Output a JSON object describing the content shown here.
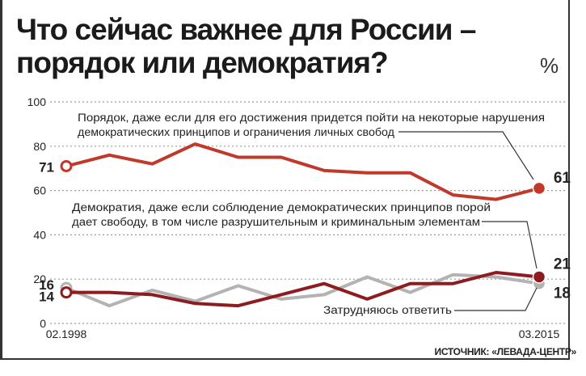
{
  "title_lines": [
    "Что сейчас важнее для России –",
    "порядок или демократия?"
  ],
  "unit": "%",
  "source": "ИСТОЧНИК: «ЛЕВАДА-ЦЕНТР»",
  "colors": {
    "order": "#c0392b",
    "democracy": "#8e1b1f",
    "undecided": "#b3b3b3",
    "grid": "#9a9a9a"
  },
  "chart_data": {
    "type": "line",
    "ylim": [
      0,
      100
    ],
    "yticks": [
      "0",
      "20",
      "40",
      "60",
      "80",
      "100"
    ],
    "x_labels": [
      "02.1998",
      "03.2015"
    ],
    "grid": true,
    "series": [
      {
        "key": "order",
        "name": "Порядок, даже если для его достижения придется пойти на некоторые нарушения демократических принципов и ограничения личных свобод",
        "name_lines": [
          "Порядок, даже если для его достижения придется пойти на некоторые нарушения",
          "демократических принципов и ограничения личных свобод"
        ],
        "values": [
          71,
          76,
          72,
          81,
          75,
          75,
          69,
          68,
          68,
          58,
          56,
          61
        ],
        "start_label": "71",
        "end_label": "61"
      },
      {
        "key": "democracy",
        "name": "Демократия, даже если соблюдение демократических принципов порой дает свободу, в том числе разрушительным и криминальным элементам",
        "name_lines": [
          "Демократия, даже если соблюдение демократических принципов порой",
          "дает свободу, в том числе разрушительным и криминальным элементам"
        ],
        "values": [
          14,
          14,
          13,
          9,
          8,
          13,
          18,
          11,
          18,
          18,
          23,
          21
        ],
        "start_label": "14",
        "end_label": "21"
      },
      {
        "key": "undecided",
        "name": "Затрудняюсь ответить",
        "name_lines": [
          "Затрудняюсь ответить"
        ],
        "values": [
          16,
          8,
          15,
          10,
          17,
          11,
          13,
          21,
          14,
          22,
          21,
          18
        ],
        "start_label": "16",
        "end_label": "18"
      }
    ]
  }
}
